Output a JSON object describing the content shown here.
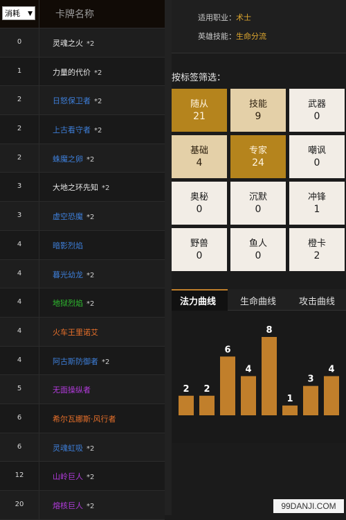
{
  "deck": {
    "sort_select": "消耗",
    "column_name": "卡牌名称",
    "cards": [
      {
        "cost": "0",
        "name": "灵魂之火",
        "count": "*2",
        "rarity": "common"
      },
      {
        "cost": "1",
        "name": "力量的代价",
        "count": "*2",
        "rarity": "common"
      },
      {
        "cost": "2",
        "name": "日怒保卫者",
        "count": "*2",
        "rarity": "rare"
      },
      {
        "cost": "2",
        "name": "上古看守者",
        "count": "*2",
        "rarity": "rare"
      },
      {
        "cost": "2",
        "name": "蛛魔之卵",
        "count": "*2",
        "rarity": "rare"
      },
      {
        "cost": "3",
        "name": "大地之环先知",
        "count": "*2",
        "rarity": "common"
      },
      {
        "cost": "3",
        "name": "虚空恐魔",
        "count": "*2",
        "rarity": "rare"
      },
      {
        "cost": "4",
        "name": "暗影烈焰",
        "count": "",
        "rarity": "rare"
      },
      {
        "cost": "4",
        "name": "暮光幼龙",
        "count": "*2",
        "rarity": "rare"
      },
      {
        "cost": "4",
        "name": "地狱烈焰",
        "count": "*2",
        "rarity": "uncommon"
      },
      {
        "cost": "4",
        "name": "火车王里诺艾",
        "count": "",
        "rarity": "legendary"
      },
      {
        "cost": "4",
        "name": "阿古斯防御者",
        "count": "*2",
        "rarity": "rare"
      },
      {
        "cost": "5",
        "name": "无面操纵者",
        "count": "",
        "rarity": "epic"
      },
      {
        "cost": "6",
        "name": "希尔瓦娜斯·风行者",
        "count": "",
        "rarity": "legendary"
      },
      {
        "cost": "6",
        "name": "灵魂虹吸",
        "count": "*2",
        "rarity": "rare"
      },
      {
        "cost": "12",
        "name": "山岭巨人",
        "count": "*2",
        "rarity": "epic"
      },
      {
        "cost": "20",
        "name": "熔核巨人",
        "count": "*2",
        "rarity": "epic"
      }
    ]
  },
  "info": {
    "class_label": "适用职业：",
    "class_value": "术士",
    "hero_power_label": "英雄技能：",
    "hero_power_value": "生命分流"
  },
  "filter": {
    "title": "按标签筛选：",
    "tags": [
      {
        "label": "随从",
        "value": "21",
        "style": "dark"
      },
      {
        "label": "技能",
        "value": "9",
        "style": "light"
      },
      {
        "label": "武器",
        "value": "0",
        "style": "white"
      },
      {
        "label": "基础",
        "value": "4",
        "style": "light"
      },
      {
        "label": "专家",
        "value": "24",
        "style": "dark"
      },
      {
        "label": "嘲讽",
        "value": "0",
        "style": "white"
      },
      {
        "label": "奥秘",
        "value": "0",
        "style": "white"
      },
      {
        "label": "沉默",
        "value": "0",
        "style": "white"
      },
      {
        "label": "冲锋",
        "value": "1",
        "style": "white"
      },
      {
        "label": "野兽",
        "value": "0",
        "style": "white"
      },
      {
        "label": "鱼人",
        "value": "0",
        "style": "white"
      },
      {
        "label": "橙卡",
        "value": "2",
        "style": "white"
      }
    ]
  },
  "curve": {
    "tabs": [
      "法力曲线",
      "生命曲线",
      "攻击曲线"
    ],
    "active_tab": 0
  },
  "chart_data": {
    "type": "bar",
    "values": [
      2,
      2,
      6,
      4,
      8,
      1,
      3,
      4
    ],
    "ylim": [
      0,
      8
    ],
    "bar_color": "#c17f2b"
  },
  "watermark": "99DANJI.COM",
  "colors": {
    "accent": "#c17f2b",
    "tag_dark": "#b5841d",
    "tag_light": "#e4d0a8",
    "tag_white": "#f2ede6"
  }
}
